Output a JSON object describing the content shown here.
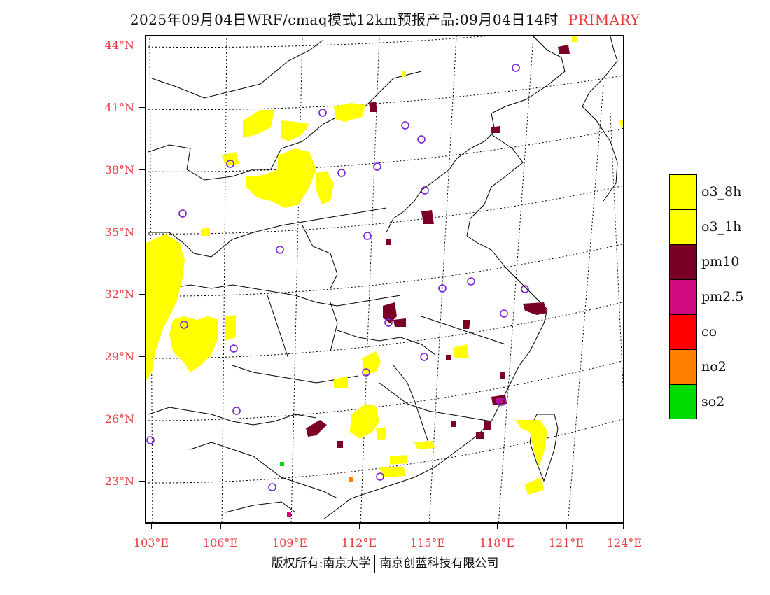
{
  "title": {
    "main": "2025年09月04日WRF/cmaq模式12km预报产品:09月04日14时",
    "tag": "PRIMARY"
  },
  "lat_labels": [
    "44°N",
    "41°N",
    "38°N",
    "35°N",
    "32°N",
    "29°N",
    "26°N",
    "23°N"
  ],
  "lon_labels": [
    "103°E",
    "106°E",
    "109°E",
    "112°E",
    "115°E",
    "118°E",
    "121°E",
    "124°E"
  ],
  "legend": [
    {
      "label": "o3_8h",
      "color": "#ffff00"
    },
    {
      "label": "o3_1h",
      "color": "#ffff00"
    },
    {
      "label": "pm10",
      "color": "#7a0026"
    },
    {
      "label": "pm2.5",
      "color": "#d20a7f"
    },
    {
      "label": "co",
      "color": "#ff0000"
    },
    {
      "label": "no2",
      "color": "#ff7f00"
    },
    {
      "label": "so2",
      "color": "#00dc00"
    }
  ],
  "footer": {
    "left": "版权所有:南京大学",
    "right": "南京创蓝科技有限公司"
  }
}
